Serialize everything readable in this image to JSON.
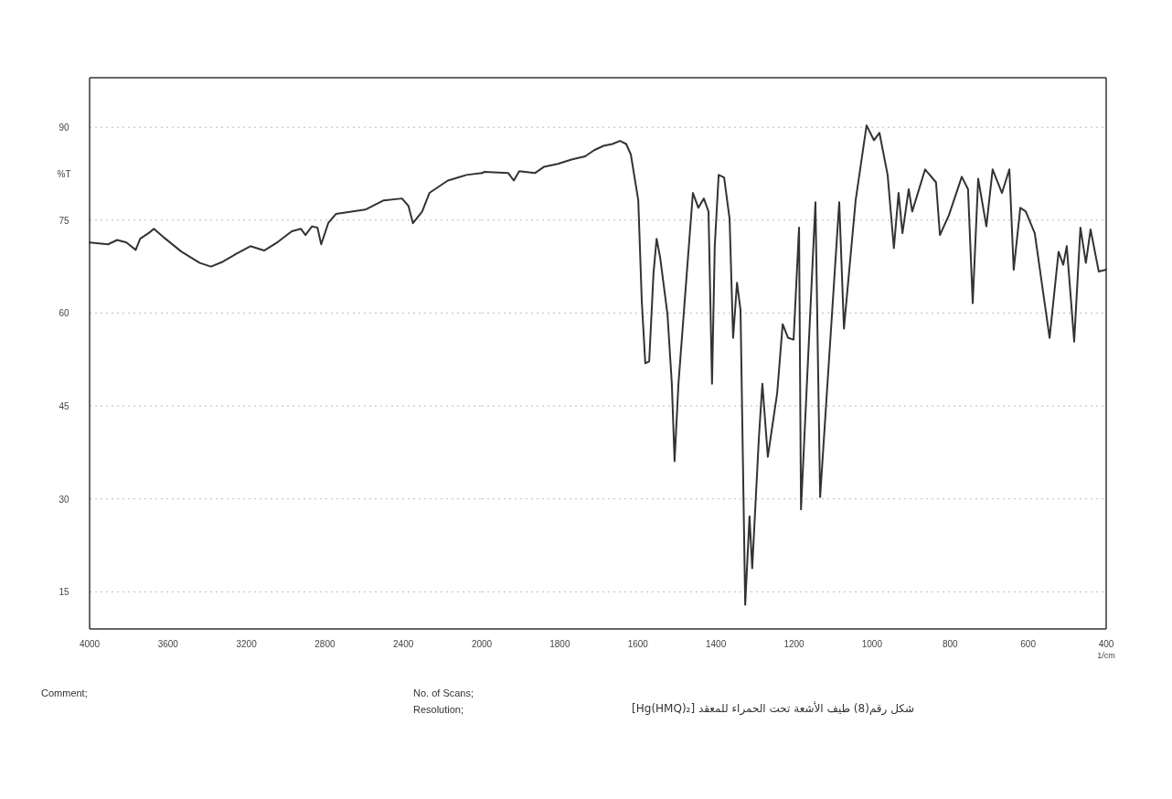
{
  "chart_data": [
    {
      "type": "line",
      "ylabel": "%T",
      "xlim": [
        4000,
        2000
      ],
      "xticks": [
        4000,
        3600,
        3200,
        2800,
        2400,
        2000
      ],
      "ylim": [
        9,
        98
      ],
      "yticks": [
        15,
        30,
        45,
        60,
        75,
        90
      ],
      "grid": "y",
      "series": [
        {
          "color": "#333333",
          "x": [
            4000,
            3906,
            3859,
            3812,
            3765,
            3742,
            3695,
            3672,
            3625,
            3531,
            3438,
            3381,
            3320,
            3250,
            3180,
            3110,
            3039,
            2969,
            2922,
            2899,
            2866,
            2838,
            2819,
            2782,
            2744,
            2594,
            2500,
            2407,
            2374,
            2351,
            2304,
            2267,
            2173,
            2079,
            2000
          ],
          "values": [
            71.4,
            71.1,
            71.8,
            71.4,
            70.2,
            72.0,
            73.0,
            73.6,
            72.3,
            69.9,
            68.1,
            67.5,
            68.3,
            69.6,
            70.8,
            70.1,
            71.5,
            73.2,
            73.6,
            72.6,
            74.0,
            73.8,
            71.1,
            74.6,
            76.0,
            76.7,
            78.2,
            78.5,
            77.3,
            74.5,
            76.4,
            79.4,
            81.4,
            82.3,
            82.6
          ]
        }
      ],
      "annotations": [
        "Comment;",
        "No. of Scans;",
        "Resolution;",
        "شكل رقم(8) طيف الأشعة تحت الحمراء للمعقد [Hg(HMQ)₂]"
      ]
    },
    {
      "type": "line",
      "xlabel": "1/cm",
      "xlim": [
        2000,
        400
      ],
      "xticks": [
        1800,
        1600,
        1400,
        1200,
        1000,
        800,
        600,
        400
      ],
      "ylim": [
        9,
        98
      ],
      "yticks": [
        15,
        30,
        45,
        60,
        75,
        90
      ],
      "tick_labels": "x",
      "grid": "y",
      "series": [
        {
          "color": "#333333",
          "x": [
            2000,
            1993,
            1932,
            1918,
            1904,
            1864,
            1841,
            1805,
            1770,
            1735,
            1712,
            1688,
            1665,
            1646,
            1630,
            1618,
            1599,
            1590,
            1581,
            1571,
            1560,
            1552,
            1543,
            1524,
            1513,
            1506,
            1496,
            1473,
            1459,
            1445,
            1431,
            1419,
            1410,
            1403,
            1393,
            1379,
            1365,
            1356,
            1346,
            1337,
            1325,
            1314,
            1307,
            1290,
            1281,
            1267,
            1243,
            1229,
            1215,
            1201,
            1187,
            1182,
            1145,
            1133,
            1084,
            1072,
            1042,
            1014,
            995,
            981,
            960,
            944,
            932,
            922,
            906,
            897,
            864,
            836,
            826,
            803,
            770,
            754,
            742,
            728,
            707,
            691,
            667,
            648,
            637,
            620,
            606,
            583,
            545,
            522,
            510,
            501,
            482,
            466,
            452,
            440,
            419,
            400
          ],
          "values": [
            82.6,
            82.8,
            82.6,
            81.4,
            82.9,
            82.6,
            83.6,
            84.1,
            84.8,
            85.3,
            86.3,
            87.0,
            87.3,
            87.8,
            87.3,
            85.6,
            78.2,
            61.9,
            51.9,
            52.2,
            66.4,
            72.0,
            69.0,
            59.7,
            48.6,
            36.1,
            48.6,
            67.8,
            79.4,
            77.0,
            78.5,
            76.4,
            48.6,
            70.8,
            82.3,
            81.9,
            75.2,
            56.0,
            64.9,
            60.5,
            12.9,
            27.2,
            18.8,
            39.8,
            48.6,
            36.8,
            47.1,
            58.2,
            56.0,
            55.7,
            73.8,
            28.3,
            77.9,
            30.3,
            77.9,
            57.5,
            78.2,
            90.3,
            87.9,
            89.1,
            82.3,
            70.5,
            79.4,
            72.9,
            80.0,
            76.4,
            83.2,
            81.1,
            72.6,
            75.8,
            82.0,
            80.0,
            61.6,
            81.7,
            74.0,
            83.2,
            79.4,
            83.2,
            67.0,
            77.0,
            76.4,
            72.9,
            56.0,
            69.9,
            67.8,
            70.8,
            55.4,
            73.8,
            68.1,
            73.5,
            66.7,
            67.0
          ]
        }
      ]
    }
  ]
}
